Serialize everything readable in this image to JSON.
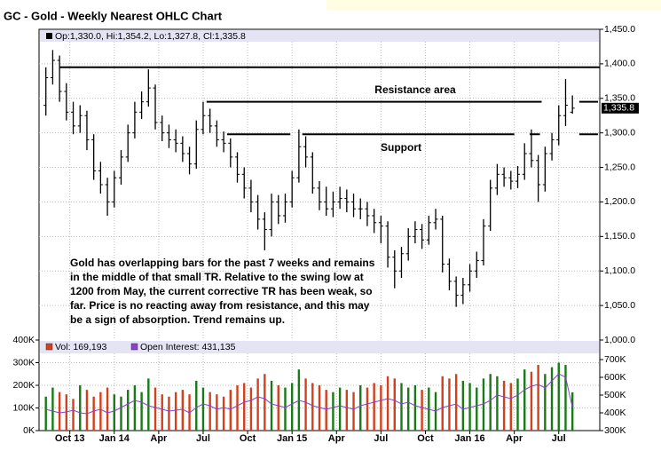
{
  "chart_data": [
    {
      "type": "ohlc",
      "title": "GC - Gold - Weekly Nearest OHLC Chart",
      "legend_text": "Op:1,330.0, Hi:1,354.2, Lo:1,327.8, Cl:1,335.8",
      "last_label": "1,335.8",
      "color": "#000000",
      "grid": true,
      "x": [
        1,
        3,
        5,
        7,
        9,
        11,
        13,
        15,
        17,
        19,
        21,
        23,
        25,
        27,
        29,
        31,
        33,
        35,
        37,
        39,
        41,
        43,
        45,
        47,
        49,
        51,
        53,
        55,
        57,
        59,
        61,
        63,
        65,
        67,
        69,
        71,
        73,
        75,
        77,
        79,
        81,
        83,
        85,
        87,
        89,
        91,
        93,
        95,
        97,
        99,
        101,
        103,
        105,
        107,
        109,
        111,
        113,
        115,
        117,
        119,
        121,
        123,
        125,
        127,
        129,
        131,
        133,
        135,
        137,
        139,
        141,
        143,
        145,
        147,
        149,
        151,
        153,
        155
      ],
      "open": [
        1340,
        1380,
        1405,
        1360,
        1330,
        1310,
        1325,
        1290,
        1245,
        1225,
        1200,
        1235,
        1265,
        1300,
        1330,
        1345,
        1365,
        1315,
        1300,
        1290,
        1285,
        1270,
        1255,
        1305,
        1325,
        1310,
        1290,
        1285,
        1265,
        1240,
        1220,
        1200,
        1175,
        1160,
        1200,
        1180,
        1200,
        1235,
        1280,
        1265,
        1220,
        1200,
        1190,
        1200,
        1205,
        1200,
        1190,
        1190,
        1180,
        1170,
        1165,
        1120,
        1100,
        1125,
        1150,
        1160,
        1145,
        1170,
        1175,
        1110,
        1085,
        1065,
        1080,
        1100,
        1115,
        1165,
        1220,
        1240,
        1235,
        1230,
        1240,
        1270,
        1260,
        1225,
        1270,
        1290,
        1325,
        1330
      ],
      "high": [
        1395,
        1420,
        1412,
        1372,
        1345,
        1340,
        1332,
        1298,
        1258,
        1235,
        1245,
        1275,
        1312,
        1345,
        1360,
        1392,
        1370,
        1325,
        1312,
        1305,
        1295,
        1280,
        1318,
        1345,
        1335,
        1318,
        1302,
        1292,
        1272,
        1250,
        1232,
        1210,
        1185,
        1212,
        1210,
        1212,
        1245,
        1305,
        1295,
        1272,
        1230,
        1222,
        1215,
        1222,
        1218,
        1212,
        1205,
        1200,
        1190,
        1180,
        1172,
        1130,
        1135,
        1162,
        1172,
        1168,
        1180,
        1190,
        1180,
        1118,
        1092,
        1090,
        1110,
        1128,
        1175,
        1232,
        1255,
        1250,
        1245,
        1252,
        1285,
        1305,
        1268,
        1280,
        1300,
        1340,
        1378,
        1354.2
      ],
      "low": [
        1325,
        1370,
        1345,
        1318,
        1298,
        1300,
        1275,
        1232,
        1212,
        1180,
        1192,
        1225,
        1258,
        1292,
        1320,
        1338,
        1305,
        1288,
        1278,
        1272,
        1258,
        1240,
        1248,
        1298,
        1300,
        1280,
        1272,
        1250,
        1228,
        1205,
        1185,
        1160,
        1130,
        1150,
        1168,
        1170,
        1192,
        1228,
        1250,
        1212,
        1188,
        1180,
        1178,
        1190,
        1185,
        1178,
        1175,
        1165,
        1155,
        1140,
        1105,
        1075,
        1090,
        1115,
        1140,
        1132,
        1138,
        1160,
        1098,
        1072,
        1048,
        1052,
        1070,
        1090,
        1108,
        1158,
        1210,
        1222,
        1218,
        1220,
        1232,
        1250,
        1200,
        1215,
        1260,
        1282,
        1310,
        1327.8
      ],
      "close": [
        1380,
        1405,
        1360,
        1330,
        1310,
        1325,
        1290,
        1245,
        1225,
        1200,
        1235,
        1265,
        1300,
        1330,
        1345,
        1365,
        1315,
        1300,
        1290,
        1285,
        1270,
        1255,
        1305,
        1325,
        1310,
        1290,
        1285,
        1265,
        1240,
        1220,
        1200,
        1175,
        1160,
        1200,
        1180,
        1200,
        1235,
        1280,
        1265,
        1220,
        1200,
        1190,
        1200,
        1205,
        1200,
        1190,
        1190,
        1180,
        1170,
        1165,
        1120,
        1100,
        1125,
        1150,
        1160,
        1145,
        1170,
        1175,
        1110,
        1085,
        1065,
        1080,
        1100,
        1115,
        1165,
        1220,
        1240,
        1235,
        1230,
        1240,
        1270,
        1260,
        1225,
        1270,
        1290,
        1325,
        1340,
        1335.8
      ],
      "xlim": [
        -1,
        163
      ],
      "ylim": [
        1000,
        1450
      ],
      "yticks": [
        {
          "value": 1000,
          "label": "1,000.0"
        },
        {
          "value": 1050,
          "label": "1,050.0"
        },
        {
          "value": 1100,
          "label": "1,100.0"
        },
        {
          "value": 1150,
          "label": "1,150.0"
        },
        {
          "value": 1200,
          "label": "1,200.0"
        },
        {
          "value": 1250,
          "label": "1,250.0"
        },
        {
          "value": 1300,
          "label": "1,300.0"
        },
        {
          "value": 1350,
          "label": "1,350.0"
        },
        {
          "value": 1400,
          "label": "1,400.0"
        },
        {
          "value": 1450,
          "label": "1,450.0"
        }
      ],
      "lines": [
        {
          "y": 1395,
          "x": [
            5,
            163
          ]
        },
        {
          "y": 1345,
          "x": [
            48,
            146
          ]
        },
        {
          "y": 1345,
          "x": [
            157,
            162.5
          ]
        },
        {
          "y": 1298,
          "x": [
            54,
            72.5
          ]
        },
        {
          "y": 1298,
          "x": [
            76,
            138
          ]
        },
        {
          "y": 1298,
          "x": [
            142.5,
            145.5
          ]
        },
        {
          "y": 1298,
          "x": [
            157,
            162.5
          ]
        }
      ],
      "annotations": [
        "Resistance area",
        "Support"
      ],
      "note": [
        "Gold has overlapping bars for the past 7 weeks and remains",
        "in the middle of that small TR.  Relative to the swing low at",
        "1200 from May, the current corrective TR has been weak, so",
        "far.  Price is no reacting away from resistance, and this may",
        "be a sign of absorption.  Trend remains up."
      ]
    },
    {
      "type": "bar",
      "grid": true,
      "up_color": "#1a7a1a",
      "down_color": "#d4401c",
      "x": [
        1,
        3,
        5,
        7,
        9,
        11,
        13,
        15,
        17,
        19,
        21,
        23,
        25,
        27,
        29,
        31,
        33,
        35,
        37,
        39,
        41,
        43,
        45,
        47,
        49,
        51,
        53,
        55,
        57,
        59,
        61,
        63,
        65,
        67,
        69,
        71,
        73,
        75,
        77,
        79,
        81,
        83,
        85,
        87,
        89,
        91,
        93,
        95,
        97,
        99,
        101,
        103,
        105,
        107,
        109,
        111,
        113,
        115,
        117,
        119,
        121,
        123,
        125,
        127,
        129,
        131,
        133,
        135,
        137,
        139,
        141,
        143,
        145,
        147,
        149,
        151,
        153,
        155
      ],
      "series": [
        {
          "name": "Vol: 169,193",
          "color": "#d4401c",
          "values": [
            150000,
            190000,
            170000,
            160000,
            140000,
            200000,
            180000,
            150000,
            170000,
            190000,
            160000,
            150000,
            180000,
            200000,
            170000,
            230000,
            190000,
            160000,
            150000,
            170000,
            180000,
            160000,
            220000,
            190000,
            170000,
            160000,
            150000,
            180000,
            200000,
            210000,
            190000,
            230000,
            250000,
            220000,
            200000,
            190000,
            210000,
            270000,
            230000,
            210000,
            200000,
            180000,
            170000,
            190000,
            180000,
            170000,
            200000,
            190000,
            210000,
            200000,
            240000,
            230000,
            210000,
            190000,
            200000,
            180000,
            190000,
            170000,
            240000,
            230000,
            250000,
            220000,
            210000,
            190000,
            230000,
            250000,
            240000,
            220000,
            210000,
            230000,
            270000,
            260000,
            290000,
            250000,
            280000,
            300000,
            290000,
            169193
          ]
        },
        {
          "name": "Open Interest: 431,135",
          "color": "#8a3fd1",
          "axis": "y2",
          "values": [
            420000,
            410000,
            400000,
            405000,
            415000,
            400000,
            395000,
            410000,
            420000,
            400000,
            410000,
            430000,
            450000,
            470000,
            460000,
            440000,
            430000,
            420000,
            410000,
            415000,
            420000,
            400000,
            430000,
            450000,
            440000,
            420000,
            430000,
            420000,
            440000,
            460000,
            470000,
            490000,
            480000,
            450000,
            440000,
            430000,
            450000,
            470000,
            460000,
            440000,
            430000,
            420000,
            430000,
            440000,
            430000,
            420000,
            440000,
            450000,
            460000,
            470000,
            480000,
            470000,
            450000,
            460000,
            440000,
            430000,
            420000,
            410000,
            430000,
            440000,
            450000,
            420000,
            430000,
            440000,
            450000,
            470000,
            500000,
            490000,
            480000,
            500000,
            530000,
            550000,
            560000,
            540000,
            580000,
            620000,
            600000,
            431135
          ]
        }
      ],
      "xlim": [
        -1,
        163
      ],
      "xticks": [
        {
          "value": 8,
          "label": "Oct 13"
        },
        {
          "value": 21,
          "label": "Jan 14"
        },
        {
          "value": 34,
          "label": "Apr"
        },
        {
          "value": 47,
          "label": "Jul"
        },
        {
          "value": 60,
          "label": "Oct"
        },
        {
          "value": 73,
          "label": "Jan 15"
        },
        {
          "value": 86,
          "label": "Apr"
        },
        {
          "value": 99,
          "label": "Jul"
        },
        {
          "value": 112,
          "label": "Oct"
        },
        {
          "value": 125,
          "label": "Jan 16"
        },
        {
          "value": 138,
          "label": "Apr"
        },
        {
          "value": 151,
          "label": "Jul"
        }
      ],
      "ylim": [
        0,
        400000
      ],
      "yticks": [
        {
          "value": 0,
          "label": "0K"
        },
        {
          "value": 100000,
          "label": "100K"
        },
        {
          "value": 200000,
          "label": "200K"
        },
        {
          "value": 300000,
          "label": "300K"
        },
        {
          "value": 400000,
          "label": "400K"
        }
      ],
      "y2lim": [
        300000,
        810000
      ],
      "y2ticks": [
        {
          "value": 300000,
          "label": "300K"
        },
        {
          "value": 400000,
          "label": "400K"
        },
        {
          "value": 500000,
          "label": "500K"
        },
        {
          "value": 600000,
          "label": "600K"
        },
        {
          "value": 700000,
          "label": "700K"
        }
      ]
    }
  ]
}
